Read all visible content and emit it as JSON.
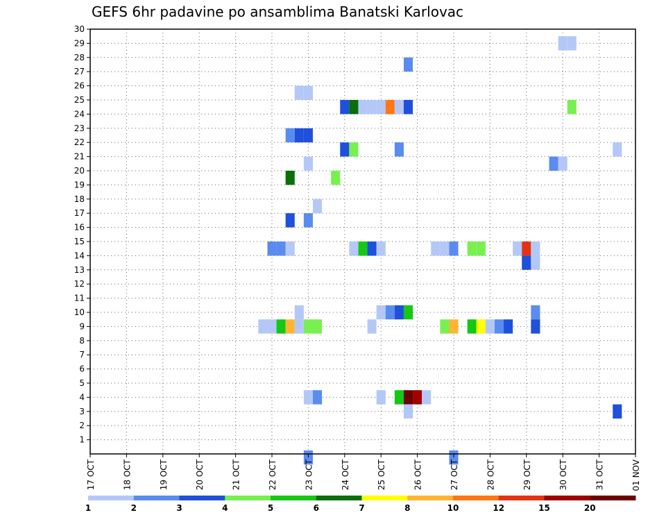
{
  "chart_data": {
    "type": "heatmap",
    "title": "GEFS 6hr padavine po ansamblima Banatski Karlovac",
    "x_tick_labels": [
      "17 OCT",
      "18 OCT",
      "19 OCT",
      "20 OCT",
      "21 OCT",
      "22 OCT",
      "23 OCT",
      "24 OCT",
      "25 OCT",
      "26 OCT",
      "27 OCT",
      "28 OCT",
      "29 OCT",
      "30 OCT",
      "31 OCT",
      "01 NOV"
    ],
    "x_range_days": [
      0,
      15
    ],
    "y_tick_labels": [
      "1",
      "2",
      "3",
      "4",
      "5",
      "6",
      "7",
      "8",
      "9",
      "10",
      "11",
      "12",
      "13",
      "14",
      "15",
      "16",
      "17",
      "18",
      "19",
      "20",
      "21",
      "22",
      "23",
      "24",
      "25",
      "26",
      "27",
      "28",
      "29",
      "30"
    ],
    "y_range": [
      0,
      30
    ],
    "grid": true,
    "legend": {
      "placement": "bottom",
      "labels": [
        "1",
        "2",
        "3",
        "4",
        "5",
        "6",
        "7",
        "8",
        "10",
        "12",
        "15",
        "20"
      ],
      "colors": [
        "#b4c8f8",
        "#5a8cf0",
        "#1e50dc",
        "#78f050",
        "#14c814",
        "#0a6e0a",
        "#ffff00",
        "#ffb432",
        "#ff7814",
        "#e63214",
        "#a00000",
        "#6e0000"
      ]
    },
    "cells": [
      {
        "x": 13.0,
        "y": 29,
        "c": 1
      },
      {
        "x": 13.25,
        "y": 29,
        "c": 1
      },
      {
        "x": 8.75,
        "y": 27.5,
        "c": 2
      },
      {
        "x": 5.75,
        "y": 25.5,
        "c": 1
      },
      {
        "x": 6.0,
        "y": 25.5,
        "c": 1
      },
      {
        "x": 7.0,
        "y": 24.5,
        "c": 3
      },
      {
        "x": 7.25,
        "y": 24.5,
        "c": 6
      },
      {
        "x": 7.5,
        "y": 24.5,
        "c": 1
      },
      {
        "x": 7.75,
        "y": 24.5,
        "c": 1
      },
      {
        "x": 8.0,
        "y": 24.5,
        "c": 1
      },
      {
        "x": 8.25,
        "y": 24.5,
        "c": 9
      },
      {
        "x": 8.5,
        "y": 24.5,
        "c": 1
      },
      {
        "x": 8.75,
        "y": 24.5,
        "c": 3
      },
      {
        "x": 13.25,
        "y": 24.5,
        "c": 4
      },
      {
        "x": 5.5,
        "y": 22.5,
        "c": 2
      },
      {
        "x": 5.75,
        "y": 22.5,
        "c": 3
      },
      {
        "x": 6.0,
        "y": 22.5,
        "c": 3
      },
      {
        "x": 7.0,
        "y": 21.5,
        "c": 3
      },
      {
        "x": 7.25,
        "y": 21.5,
        "c": 4
      },
      {
        "x": 8.5,
        "y": 21.5,
        "c": 2
      },
      {
        "x": 14.5,
        "y": 21.5,
        "c": 1
      },
      {
        "x": 6.0,
        "y": 20.5,
        "c": 1
      },
      {
        "x": 12.75,
        "y": 20.5,
        "c": 2
      },
      {
        "x": 13.0,
        "y": 20.5,
        "c": 1
      },
      {
        "x": 5.5,
        "y": 19.5,
        "c": 6
      },
      {
        "x": 6.75,
        "y": 19.5,
        "c": 4
      },
      {
        "x": 6.25,
        "y": 17.5,
        "c": 1
      },
      {
        "x": 5.5,
        "y": 16.5,
        "c": 3
      },
      {
        "x": 6.0,
        "y": 16.5,
        "c": 2
      },
      {
        "x": 5.0,
        "y": 14.5,
        "c": 2
      },
      {
        "x": 5.25,
        "y": 14.5,
        "c": 2
      },
      {
        "x": 5.5,
        "y": 14.5,
        "c": 1
      },
      {
        "x": 7.25,
        "y": 14.5,
        "c": 1
      },
      {
        "x": 7.5,
        "y": 14.5,
        "c": 5
      },
      {
        "x": 7.75,
        "y": 14.5,
        "c": 3
      },
      {
        "x": 8.0,
        "y": 14.5,
        "c": 1
      },
      {
        "x": 9.5,
        "y": 14.5,
        "c": 1
      },
      {
        "x": 9.75,
        "y": 14.5,
        "c": 1
      },
      {
        "x": 10.0,
        "y": 14.5,
        "c": 2
      },
      {
        "x": 10.5,
        "y": 14.5,
        "c": 4
      },
      {
        "x": 10.75,
        "y": 14.5,
        "c": 4
      },
      {
        "x": 11.75,
        "y": 14.5,
        "c": 1
      },
      {
        "x": 12.0,
        "y": 14.5,
        "c": 10
      },
      {
        "x": 12.25,
        "y": 14.5,
        "c": 1
      },
      {
        "x": 12.0,
        "y": 13.5,
        "c": 3
      },
      {
        "x": 12.25,
        "y": 13.5,
        "c": 1
      },
      {
        "x": 5.75,
        "y": 10,
        "c": 1
      },
      {
        "x": 12.25,
        "y": 10,
        "c": 2
      },
      {
        "x": 8.0,
        "y": 10,
        "c": 1
      },
      {
        "x": 8.25,
        "y": 10,
        "c": 2
      },
      {
        "x": 8.5,
        "y": 10,
        "c": 3
      },
      {
        "x": 8.75,
        "y": 10,
        "c": 5
      },
      {
        "x": 4.75,
        "y": 9,
        "c": 1
      },
      {
        "x": 5.0,
        "y": 9,
        "c": 1
      },
      {
        "x": 5.25,
        "y": 9,
        "c": 5
      },
      {
        "x": 5.5,
        "y": 9,
        "c": 8
      },
      {
        "x": 5.75,
        "y": 9,
        "c": 1
      },
      {
        "x": 6.0,
        "y": 9,
        "c": 4
      },
      {
        "x": 6.25,
        "y": 9,
        "c": 4
      },
      {
        "x": 7.75,
        "y": 9,
        "c": 1
      },
      {
        "x": 9.75,
        "y": 9,
        "c": 4
      },
      {
        "x": 10.0,
        "y": 9,
        "c": 8
      },
      {
        "x": 10.5,
        "y": 9,
        "c": 5
      },
      {
        "x": 10.75,
        "y": 9,
        "c": 7
      },
      {
        "x": 11.0,
        "y": 9,
        "c": 1
      },
      {
        "x": 11.25,
        "y": 9,
        "c": 2
      },
      {
        "x": 11.5,
        "y": 9,
        "c": 3
      },
      {
        "x": 12.25,
        "y": 9,
        "c": 3
      },
      {
        "x": 6.0,
        "y": 4,
        "c": 1
      },
      {
        "x": 6.25,
        "y": 4,
        "c": 2
      },
      {
        "x": 8.0,
        "y": 4,
        "c": 1
      },
      {
        "x": 8.5,
        "y": 4,
        "c": 5
      },
      {
        "x": 8.75,
        "y": 4,
        "c": 12
      },
      {
        "x": 9.0,
        "y": 4,
        "c": 11
      },
      {
        "x": 9.25,
        "y": 4,
        "c": 1
      },
      {
        "x": 8.75,
        "y": 3,
        "c": 1
      },
      {
        "x": 14.5,
        "y": 3,
        "c": 3
      },
      {
        "x": 6.0,
        "y": -0.25,
        "c": 2
      },
      {
        "x": 10.0,
        "y": -0.25,
        "c": 2
      }
    ]
  }
}
